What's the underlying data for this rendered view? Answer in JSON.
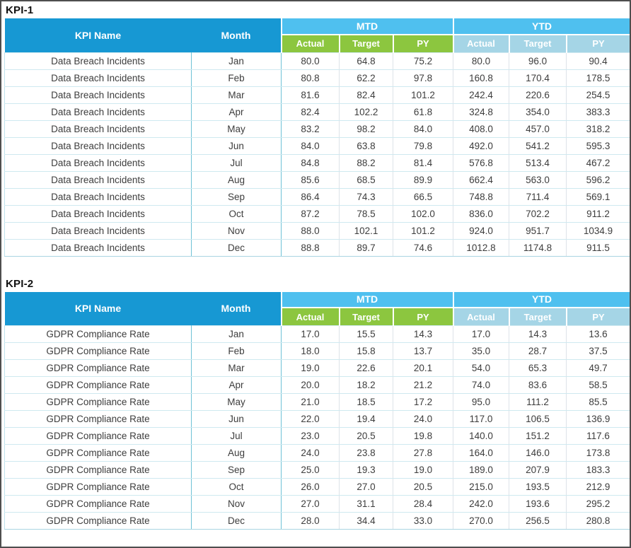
{
  "page": {
    "background": "#ffffff",
    "frame_color": "#4e4e4e"
  },
  "colors": {
    "header_blue": "#1798d3",
    "band_blue": "#4fc0ef",
    "mtd_sub_green": "#8cc63f",
    "ytd_sub_blue": "#a5d5e6",
    "header_text": "#ffffff",
    "cell_text": "#3d3d3d",
    "teal_column_border": "#6fc2d6",
    "row_border": "#cfe9f0",
    "numeric_column_border": "#dde3e9"
  },
  "table_headers": {
    "kpi_name": "KPI Name",
    "month": "Month",
    "mtd": "MTD",
    "ytd": "YTD",
    "sub_columns": [
      "Actual",
      "Target",
      "PY"
    ]
  },
  "sections": [
    {
      "label": "KPI-1",
      "kpi_name": "Data Breach Incidents",
      "rows": [
        [
          "Data Breach Incidents",
          "Jan",
          "80.0",
          "64.8",
          "75.2",
          "80.0",
          "96.0",
          "90.4"
        ],
        [
          "Data Breach Incidents",
          "Feb",
          "80.8",
          "62.2",
          "97.8",
          "160.8",
          "170.4",
          "178.5"
        ],
        [
          "Data Breach Incidents",
          "Mar",
          "81.6",
          "82.4",
          "101.2",
          "242.4",
          "220.6",
          "254.5"
        ],
        [
          "Data Breach Incidents",
          "Apr",
          "82.4",
          "102.2",
          "61.8",
          "324.8",
          "354.0",
          "383.3"
        ],
        [
          "Data Breach Incidents",
          "May",
          "83.2",
          "98.2",
          "84.0",
          "408.0",
          "457.0",
          "318.2"
        ],
        [
          "Data Breach Incidents",
          "Jun",
          "84.0",
          "63.8",
          "79.8",
          "492.0",
          "541.2",
          "595.3"
        ],
        [
          "Data Breach Incidents",
          "Jul",
          "84.8",
          "88.2",
          "81.4",
          "576.8",
          "513.4",
          "467.2"
        ],
        [
          "Data Breach Incidents",
          "Aug",
          "85.6",
          "68.5",
          "89.9",
          "662.4",
          "563.0",
          "596.2"
        ],
        [
          "Data Breach Incidents",
          "Sep",
          "86.4",
          "74.3",
          "66.5",
          "748.8",
          "711.4",
          "569.1"
        ],
        [
          "Data Breach Incidents",
          "Oct",
          "87.2",
          "78.5",
          "102.0",
          "836.0",
          "702.2",
          "911.2"
        ],
        [
          "Data Breach Incidents",
          "Nov",
          "88.0",
          "102.1",
          "101.2",
          "924.0",
          "951.7",
          "1034.9"
        ],
        [
          "Data Breach Incidents",
          "Dec",
          "88.8",
          "89.7",
          "74.6",
          "1012.8",
          "1174.8",
          "911.5"
        ]
      ]
    },
    {
      "label": "KPI-2",
      "kpi_name": "GDPR Compliance Rate",
      "rows": [
        [
          "GDPR Compliance Rate",
          "Jan",
          "17.0",
          "15.5",
          "14.3",
          "17.0",
          "14.3",
          "13.6"
        ],
        [
          "GDPR Compliance Rate",
          "Feb",
          "18.0",
          "15.8",
          "13.7",
          "35.0",
          "28.7",
          "37.5"
        ],
        [
          "GDPR Compliance Rate",
          "Mar",
          "19.0",
          "22.6",
          "20.1",
          "54.0",
          "65.3",
          "49.7"
        ],
        [
          "GDPR Compliance Rate",
          "Apr",
          "20.0",
          "18.2",
          "21.2",
          "74.0",
          "83.6",
          "58.5"
        ],
        [
          "GDPR Compliance Rate",
          "May",
          "21.0",
          "18.5",
          "17.2",
          "95.0",
          "111.2",
          "85.5"
        ],
        [
          "GDPR Compliance Rate",
          "Jun",
          "22.0",
          "19.4",
          "24.0",
          "117.0",
          "106.5",
          "136.9"
        ],
        [
          "GDPR Compliance Rate",
          "Jul",
          "23.0",
          "20.5",
          "19.8",
          "140.0",
          "151.2",
          "117.6"
        ],
        [
          "GDPR Compliance Rate",
          "Aug",
          "24.0",
          "23.8",
          "27.8",
          "164.0",
          "146.0",
          "173.8"
        ],
        [
          "GDPR Compliance Rate",
          "Sep",
          "25.0",
          "19.3",
          "19.0",
          "189.0",
          "207.9",
          "183.3"
        ],
        [
          "GDPR Compliance Rate",
          "Oct",
          "26.0",
          "27.0",
          "20.5",
          "215.0",
          "193.5",
          "212.9"
        ],
        [
          "GDPR Compliance Rate",
          "Nov",
          "27.0",
          "31.1",
          "28.4",
          "242.0",
          "193.6",
          "295.2"
        ],
        [
          "GDPR Compliance Rate",
          "Dec",
          "28.0",
          "34.4",
          "33.0",
          "270.0",
          "256.5",
          "280.8"
        ]
      ]
    }
  ]
}
